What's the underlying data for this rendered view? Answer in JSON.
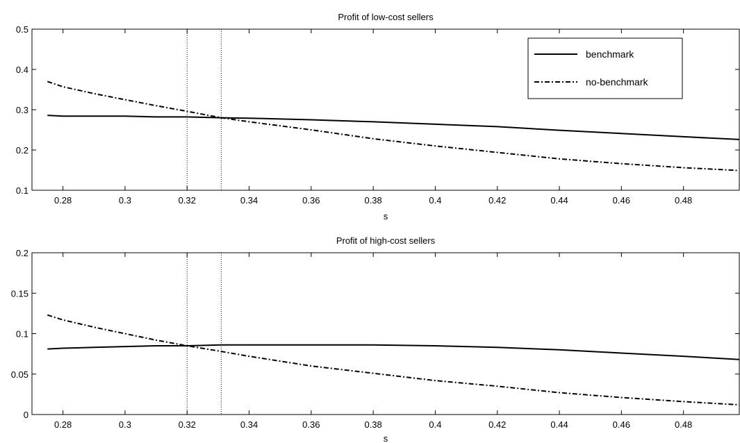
{
  "chart_data": [
    {
      "type": "line",
      "title": "Profit of low-cost sellers",
      "xlabel": "s",
      "ylabel": "",
      "xlim": [
        0.27,
        0.498
      ],
      "ylim": [
        0.1,
        0.5
      ],
      "xticks": [
        0.28,
        0.3,
        0.32,
        0.34,
        0.36,
        0.38,
        0.4,
        0.42,
        0.44,
        0.46,
        0.48
      ],
      "xtick_labels": [
        "0.28",
        "0.3",
        "0.32",
        "0.34",
        "0.36",
        "0.38",
        "0.4",
        "0.42",
        "0.44",
        "0.46",
        "0.48"
      ],
      "yticks": [
        0.1,
        0.2,
        0.3,
        0.4,
        0.5
      ],
      "ytick_labels": [
        "0.1",
        "0.2",
        "0.3",
        "0.4",
        "0.5"
      ],
      "vlines": [
        0.32,
        0.331
      ],
      "grid": false,
      "legend_position": "top-right",
      "series": [
        {
          "name": "benchmark",
          "style": "solid",
          "x": [
            0.275,
            0.28,
            0.29,
            0.3,
            0.31,
            0.32,
            0.331,
            0.34,
            0.36,
            0.38,
            0.4,
            0.42,
            0.44,
            0.46,
            0.48,
            0.498
          ],
          "y": [
            0.286,
            0.284,
            0.284,
            0.284,
            0.282,
            0.282,
            0.28,
            0.279,
            0.275,
            0.27,
            0.264,
            0.258,
            0.249,
            0.241,
            0.233,
            0.226
          ]
        },
        {
          "name": "no-benchmark",
          "style": "dashdot",
          "x": [
            0.275,
            0.28,
            0.29,
            0.3,
            0.31,
            0.32,
            0.331,
            0.34,
            0.36,
            0.38,
            0.4,
            0.42,
            0.44,
            0.46,
            0.48,
            0.498
          ],
          "y": [
            0.37,
            0.357,
            0.34,
            0.325,
            0.31,
            0.296,
            0.28,
            0.27,
            0.25,
            0.228,
            0.21,
            0.194,
            0.178,
            0.166,
            0.156,
            0.149
          ]
        }
      ]
    },
    {
      "type": "line",
      "title": "Profit of high-cost sellers",
      "xlabel": "s",
      "ylabel": "",
      "xlim": [
        0.27,
        0.498
      ],
      "ylim": [
        0,
        0.2
      ],
      "xticks": [
        0.28,
        0.3,
        0.32,
        0.34,
        0.36,
        0.38,
        0.4,
        0.42,
        0.44,
        0.46,
        0.48
      ],
      "xtick_labels": [
        "0.28",
        "0.3",
        "0.32",
        "0.34",
        "0.36",
        "0.38",
        "0.4",
        "0.42",
        "0.44",
        "0.46",
        "0.48"
      ],
      "yticks": [
        0,
        0.05,
        0.1,
        0.15,
        0.2
      ],
      "ytick_labels": [
        "0",
        "0.05",
        "0.1",
        "0.15",
        "0.2"
      ],
      "vlines": [
        0.32,
        0.331
      ],
      "grid": false,
      "series": [
        {
          "name": "benchmark",
          "style": "solid",
          "x": [
            0.275,
            0.28,
            0.29,
            0.3,
            0.31,
            0.32,
            0.331,
            0.34,
            0.36,
            0.38,
            0.4,
            0.42,
            0.44,
            0.46,
            0.48,
            0.498
          ],
          "y": [
            0.081,
            0.082,
            0.083,
            0.084,
            0.085,
            0.085,
            0.086,
            0.086,
            0.086,
            0.086,
            0.085,
            0.083,
            0.08,
            0.076,
            0.072,
            0.068
          ]
        },
        {
          "name": "no-benchmark",
          "style": "dashdot",
          "x": [
            0.275,
            0.28,
            0.29,
            0.3,
            0.31,
            0.32,
            0.331,
            0.34,
            0.36,
            0.38,
            0.4,
            0.42,
            0.44,
            0.46,
            0.48,
            0.498
          ],
          "y": [
            0.123,
            0.117,
            0.108,
            0.1,
            0.092,
            0.085,
            0.078,
            0.072,
            0.06,
            0.051,
            0.042,
            0.035,
            0.027,
            0.021,
            0.016,
            0.012
          ]
        }
      ]
    }
  ]
}
